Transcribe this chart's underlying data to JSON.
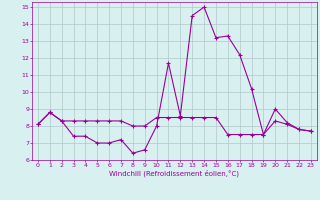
{
  "hours": [
    0,
    1,
    2,
    3,
    4,
    5,
    6,
    7,
    8,
    9,
    10,
    11,
    12,
    13,
    14,
    15,
    16,
    17,
    18,
    19,
    20,
    21,
    22,
    23
  ],
  "windchill": [
    8.1,
    8.8,
    8.3,
    7.4,
    7.4,
    7.0,
    7.0,
    7.2,
    6.4,
    6.6,
    8.0,
    11.7,
    8.6,
    14.5,
    15.0,
    13.2,
    13.3,
    12.2,
    10.2,
    7.5,
    9.0,
    8.2,
    7.8,
    7.7
  ],
  "temp": [
    8.1,
    8.8,
    8.3,
    8.3,
    8.3,
    8.3,
    8.3,
    8.3,
    8.0,
    8.0,
    8.5,
    8.5,
    8.5,
    8.5,
    8.5,
    8.5,
    7.5,
    7.5,
    7.5,
    7.5,
    8.3,
    8.1,
    7.8,
    7.7
  ],
  "line_color": "#990099",
  "bg_color": "#d8f0f0",
  "grid_color": "#b0c8c8",
  "xlabel": "Windchill (Refroidissement éolien,°C)",
  "ylim": [
    6,
    15
  ],
  "xlim": [
    -0.5,
    23.5
  ]
}
